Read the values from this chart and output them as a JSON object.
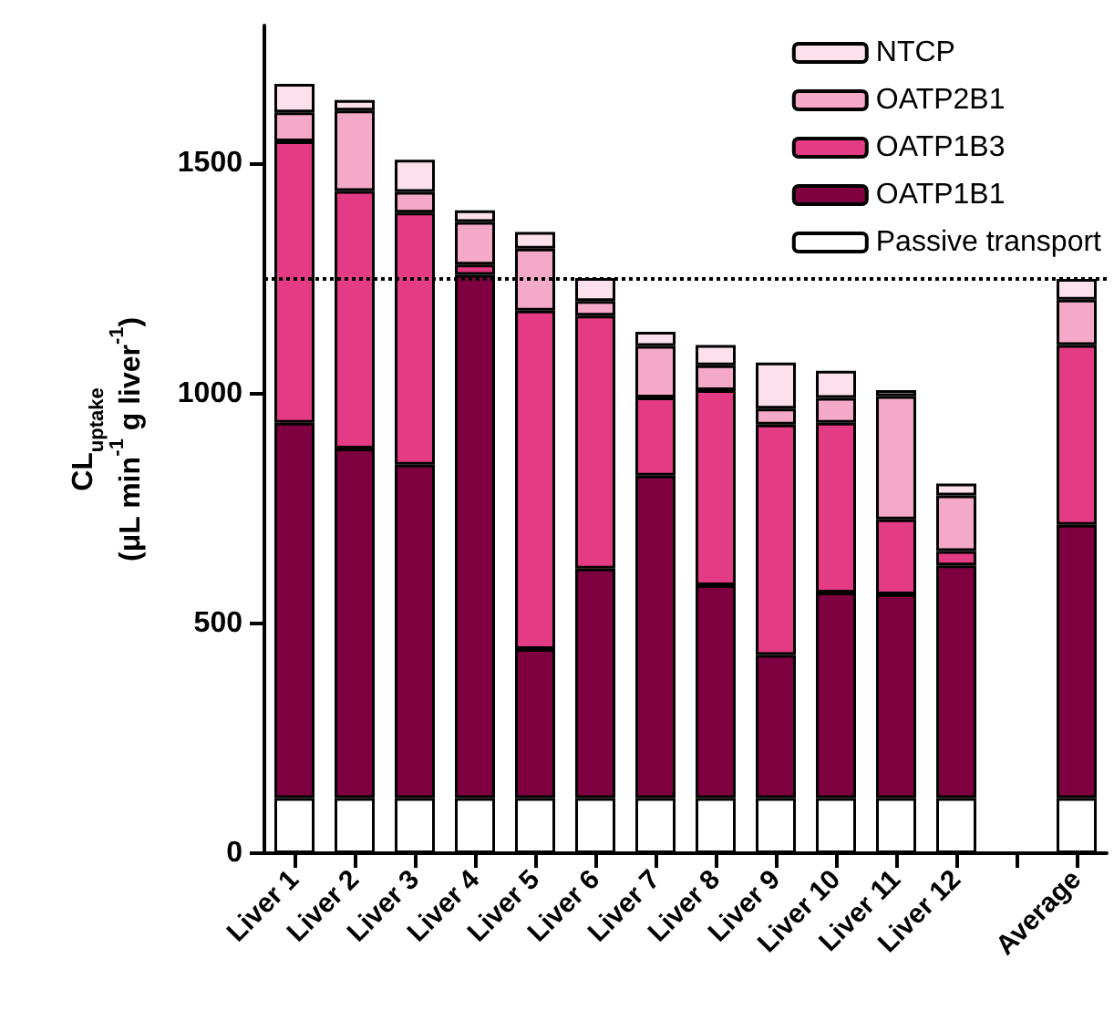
{
  "chart_data": {
    "type": "bar",
    "stacked": true,
    "ylabel": "CL$_{uptake}$\n(μL min$^{-1}$ g liver$^{-1}$)",
    "categories": [
      "Liver 1",
      "Liver 2",
      "Liver 3",
      "Liver 4",
      "Liver 5",
      "Liver 6",
      "Liver 7",
      "Liver 8",
      "Liver 9",
      "Liver 10",
      "Liver 11",
      "Liver 12",
      null,
      "Average"
    ],
    "series": [
      {
        "name": "Passive transport",
        "color": "#ffffff",
        "values": [
          120,
          120,
          120,
          120,
          120,
          120,
          120,
          120,
          120,
          120,
          120,
          120,
          null,
          120
        ]
      },
      {
        "name": "OATP1B1",
        "color": "#7f0040",
        "values": [
          816,
          760,
          725,
          1138,
          324,
          499,
          701,
          463,
          311,
          447,
          443,
          506,
          null,
          594
        ]
      },
      {
        "name": "OATP1B3",
        "color": "#e33b84",
        "values": [
          612,
          560,
          548,
          22,
          736,
          550,
          170,
          424,
          501,
          369,
          163,
          31,
          null,
          391
        ]
      },
      {
        "name": "OATP2B1",
        "color": "#f4a9c8",
        "values": [
          63,
          175,
          45,
          93,
          135,
          32,
          112,
          54,
          35,
          54,
          268,
          121,
          null,
          99
        ]
      },
      {
        "name": "NTCP",
        "color": "#fce0ec",
        "values": [
          62,
          23,
          70,
          25,
          36,
          50,
          31,
          44,
          100,
          59,
          13,
          26,
          null,
          45
        ]
      }
    ],
    "ylim": [
      0,
      1800
    ],
    "yticks": [
      0,
      500,
      1000,
      1500
    ],
    "legend": "top right",
    "grid": false,
    "ref_lines": [
      {
        "axis": "y",
        "value": 1250,
        "line_style": "dotted"
      }
    ]
  }
}
